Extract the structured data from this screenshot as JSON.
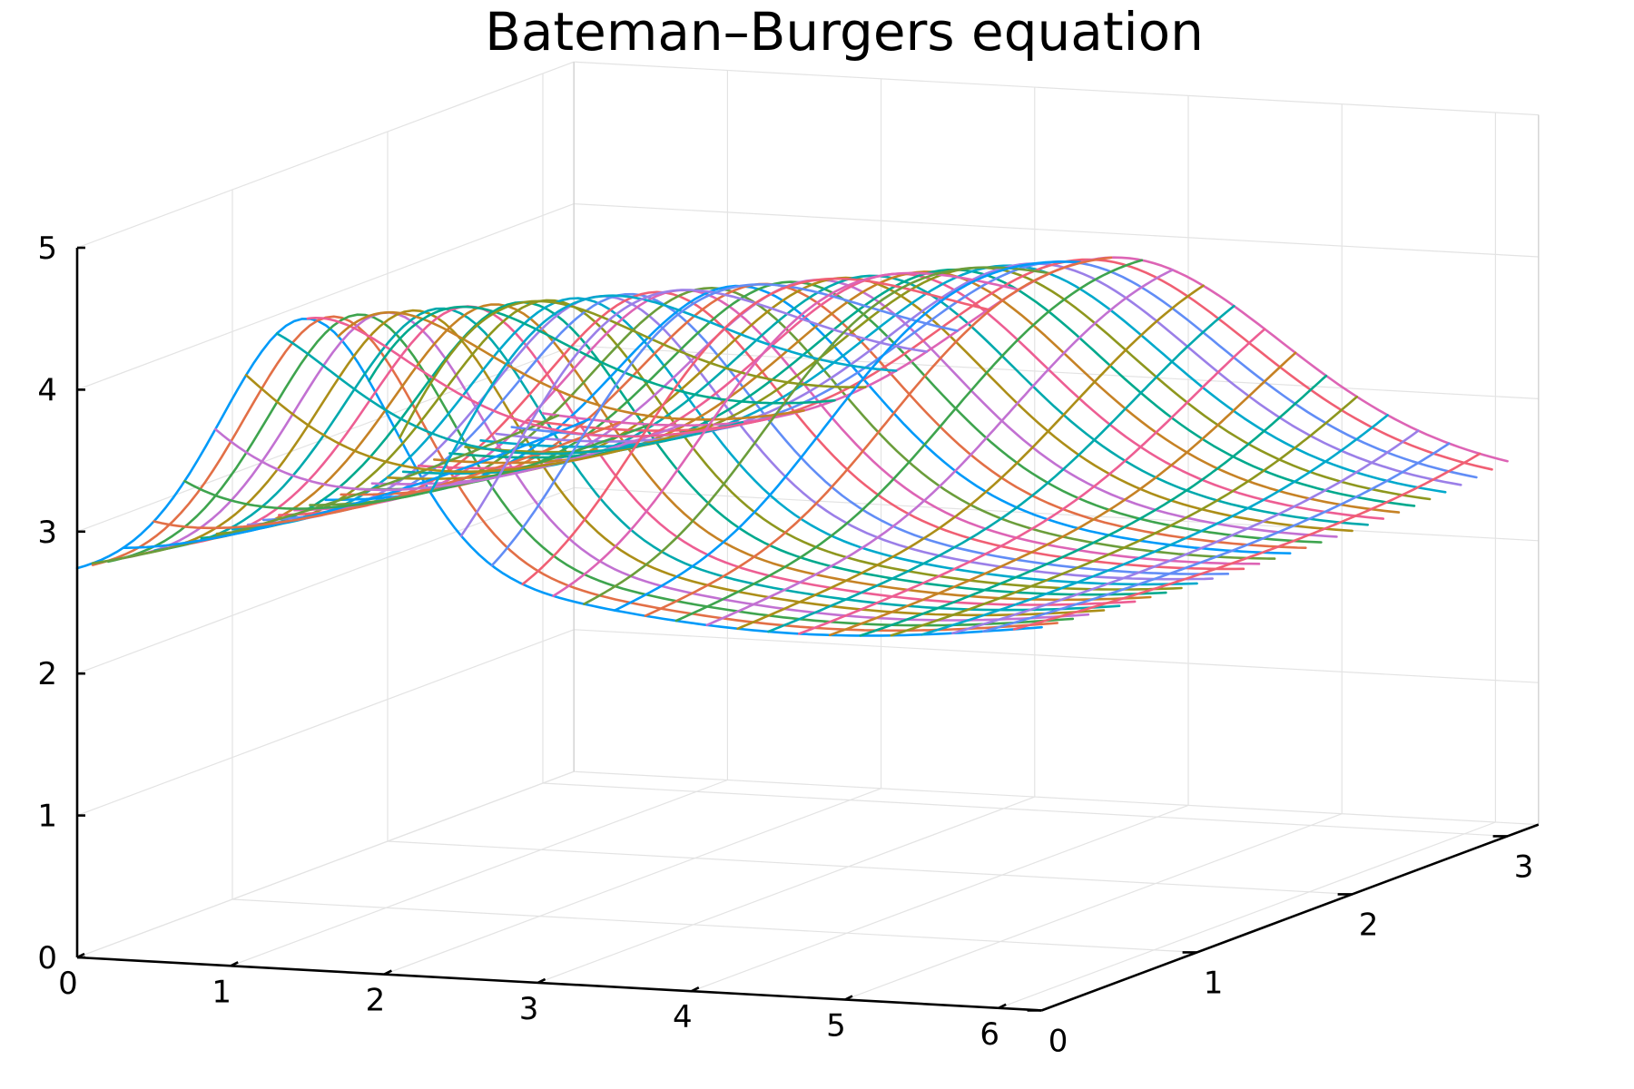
{
  "chart_data": {
    "type": "line",
    "projection": "3d-surface-traces",
    "title": "Bateman–Burgers equation",
    "xlabel": "",
    "ylabel": "",
    "zlabel": "",
    "x_ticks": [
      "0",
      "1",
      "2",
      "3",
      "4",
      "5",
      "6"
    ],
    "y_ticks": [
      "0",
      "1",
      "2",
      "3"
    ],
    "z_ticks": [
      "0",
      "1",
      "2",
      "3",
      "4",
      "5"
    ],
    "xlim": [
      0,
      6.28
    ],
    "ylim": [
      0,
      3.2
    ],
    "zlim": [
      0,
      5
    ],
    "grid": true,
    "legend": "none",
    "palette": [
      "#009af9",
      "#e26f46",
      "#3ea44e",
      "#c271d2",
      "#ac8e18",
      "#00a9ad",
      "#ed5e93",
      "#c68225",
      "#00a98d",
      "#8e971e",
      "#00a9cc",
      "#9b7fe8",
      "#618df6",
      "#f05f73",
      "#dd64b5",
      "#6b9d3b"
    ],
    "series_along_x": {
      "y_values": [
        0.0,
        0.1,
        0.2,
        0.3,
        0.4,
        0.5,
        0.6,
        0.7,
        0.8,
        0.9,
        1.0,
        1.1,
        1.2,
        1.3,
        1.4,
        1.5,
        1.6,
        1.7,
        1.8,
        1.9,
        2.0,
        2.1,
        2.2,
        2.3,
        2.4,
        2.5,
        2.6,
        2.7,
        2.8,
        2.9,
        3.0
      ],
      "x_range": [
        0,
        6.28
      ]
    },
    "series_along_y": {
      "x_values": [
        0.1,
        0.3,
        0.5,
        0.7,
        0.9,
        1.1,
        1.3,
        1.5,
        1.7,
        1.9,
        2.1,
        2.3,
        2.5,
        2.7,
        2.9,
        3.1,
        3.3,
        3.5,
        3.7,
        3.9,
        4.1,
        4.3,
        4.5,
        4.7,
        4.9,
        5.1,
        5.3,
        5.5,
        5.7,
        5.9,
        6.1
      ],
      "y_range": [
        0,
        3.0
      ]
    }
  }
}
